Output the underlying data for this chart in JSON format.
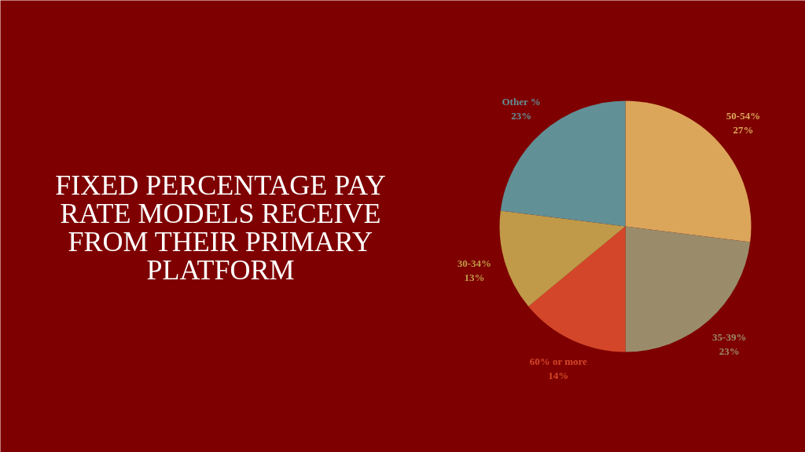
{
  "chart_data": {
    "type": "pie",
    "title": "FIXED PERCENTAGE PAY RATE MODELS RECEIVE FROM THEIR PRIMARY PLATFORM",
    "categories": [
      "50-54%",
      "35-39%",
      "60% or more",
      "30-34%",
      "Other %"
    ],
    "values": [
      27,
      23,
      14,
      13,
      23
    ],
    "colors": [
      "#dca65a",
      "#9a8c6a",
      "#d4462a",
      "#c09a48",
      "#619096"
    ],
    "value_labels": [
      "27%",
      "23%",
      "14%",
      "13%",
      "23%"
    ]
  }
}
